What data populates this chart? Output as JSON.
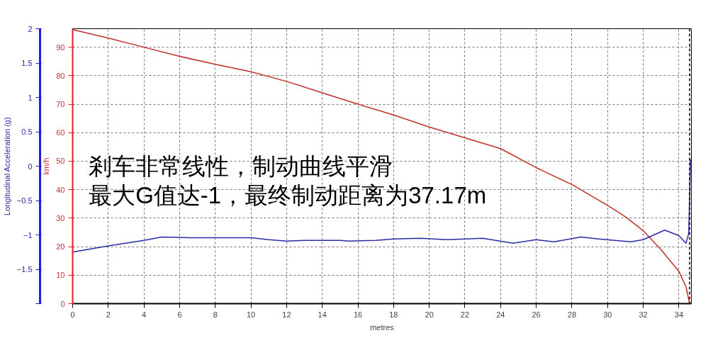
{
  "chart_data": {
    "type": "line",
    "xlabel": "metres",
    "ylabel": "km/h",
    "y2label": "Longitudinal Acceleration (g)",
    "x": [
      0,
      2,
      4,
      6,
      8,
      10,
      12,
      14,
      16,
      18,
      20,
      22,
      24,
      26,
      28,
      30,
      31,
      32,
      33,
      34,
      34.4,
      34.6
    ],
    "series": [
      {
        "color": "#c0302a",
        "values": [
          96.2,
          93.2,
          90,
          86.8,
          84,
          81.4,
          78,
          74,
          70,
          66.2,
          62,
          58.2,
          54.4,
          47.7,
          41.8,
          34.5,
          30.5,
          25.6,
          18.9,
          11.3,
          5.9,
          0
        ]
      },
      {
        "color": "#2a2aa8",
        "axis": "y2",
        "x": [
          0,
          2,
          4,
          5,
          6.5,
          10,
          11,
          12,
          13,
          15,
          15.5,
          17,
          18,
          19.5,
          21,
          23,
          24.7,
          26,
          27,
          28.5,
          29.5,
          31.3,
          32,
          33.2,
          34,
          34.4,
          34.55,
          34.65
        ],
        "values": [
          -1.25,
          -1.16,
          -1.08,
          -1.03,
          -1.04,
          -1.04,
          -1.07,
          -1.09,
          -1.08,
          -1.08,
          -1.09,
          -1.08,
          -1.06,
          -1.05,
          -1.07,
          -1.05,
          -1.12,
          -1.07,
          -1.1,
          -1.03,
          -1.06,
          -1.1,
          -1.07,
          -0.93,
          -1.01,
          -1.12,
          -0.98,
          0.1
        ]
      }
    ],
    "xlim": [
      0,
      34.7
    ],
    "xticks": [
      0,
      2,
      4,
      6,
      8,
      10,
      12,
      14,
      16,
      18,
      20,
      22,
      24,
      26,
      28,
      30,
      32,
      34
    ],
    "ylim": [
      0,
      96.5
    ],
    "yticks": [
      0,
      10,
      20,
      30,
      40,
      50,
      60,
      70,
      80,
      90
    ],
    "y2lim": [
      -2,
      2
    ],
    "y2ticks": [
      {
        "value": -2,
        "label": null
      },
      -1.5,
      -1,
      -0.5,
      0,
      0.5,
      1,
      1.5,
      2
    ],
    "ref_lines": [
      {
        "axis": "x",
        "value": 34.6,
        "color": "#000000",
        "line_style": "dashed"
      }
    ],
    "annotations": [
      "剎车非常线性，制动曲线平滑",
      "最大G值达-1，最终制动距离为37.17m"
    ],
    "grid": true
  }
}
